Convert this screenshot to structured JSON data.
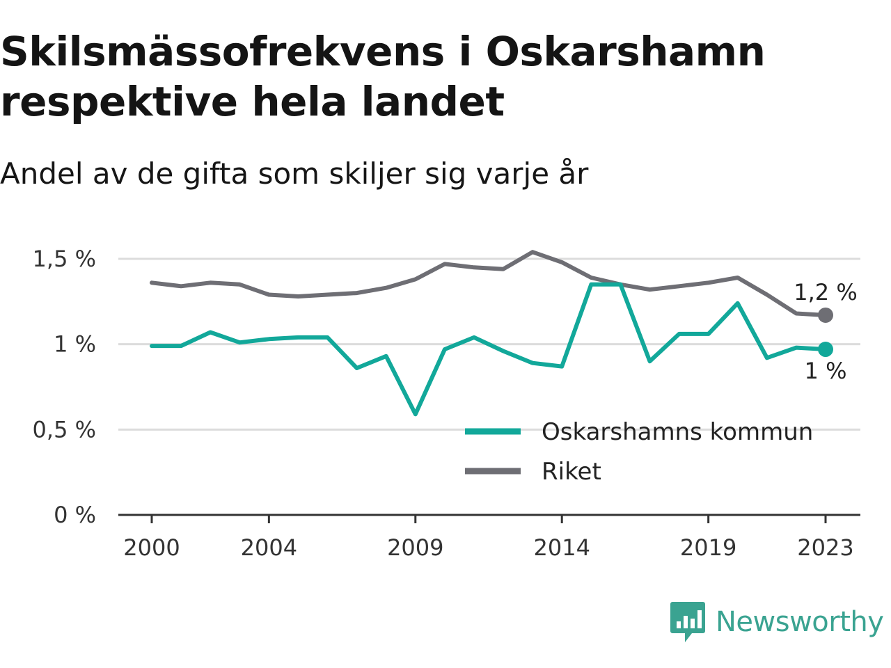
{
  "title": "Skilsmässofrekvens i Oskarshamn respektive hela landet",
  "subtitle": "Andel av de gifta som skiljer sig varje år",
  "brand": {
    "name": "Newsworthy",
    "icon": "newsworthy-logo-icon",
    "color": "#3aa391"
  },
  "chart_data": {
    "type": "line",
    "title": "Skilsmässofrekvens i Oskarshamn respektive hela landet",
    "subtitle": "Andel av de gifta som skiljer sig varje år",
    "xlabel": "",
    "ylabel": "",
    "x": [
      2000,
      2001,
      2002,
      2003,
      2004,
      2005,
      2006,
      2007,
      2008,
      2009,
      2010,
      2011,
      2012,
      2013,
      2014,
      2015,
      2016,
      2017,
      2018,
      2019,
      2020,
      2021,
      2022,
      2023
    ],
    "xticks": [
      2000,
      2004,
      2009,
      2014,
      2019,
      2023
    ],
    "xlim": [
      2000,
      2023
    ],
    "ylim": [
      0,
      1.5
    ],
    "yticks": [
      {
        "value": 0,
        "label": "0 %"
      },
      {
        "value": 0.5,
        "label": "0,5 %"
      },
      {
        "value": 1,
        "label": "1 %"
      },
      {
        "value": 1.5,
        "label": "1,5 %"
      }
    ],
    "grid": true,
    "legend_position": "bottom-right",
    "series": [
      {
        "name": "Oskarshamns kommun",
        "color": "#12a89a",
        "values": [
          0.99,
          0.99,
          1.07,
          1.01,
          1.03,
          1.04,
          1.04,
          0.86,
          0.93,
          0.59,
          0.97,
          1.04,
          0.96,
          0.89,
          0.87,
          1.35,
          1.35,
          0.9,
          1.06,
          1.06,
          1.24,
          0.92,
          0.98,
          0.97
        ],
        "end_label": "1 %"
      },
      {
        "name": "Riket",
        "color": "#6e6e74",
        "values": [
          1.36,
          1.34,
          1.36,
          1.35,
          1.29,
          1.28,
          1.29,
          1.3,
          1.33,
          1.38,
          1.47,
          1.45,
          1.44,
          1.54,
          1.48,
          1.39,
          1.35,
          1.32,
          1.34,
          1.36,
          1.39,
          1.29,
          1.18,
          1.17
        ],
        "end_label": "1,2 %"
      }
    ]
  }
}
